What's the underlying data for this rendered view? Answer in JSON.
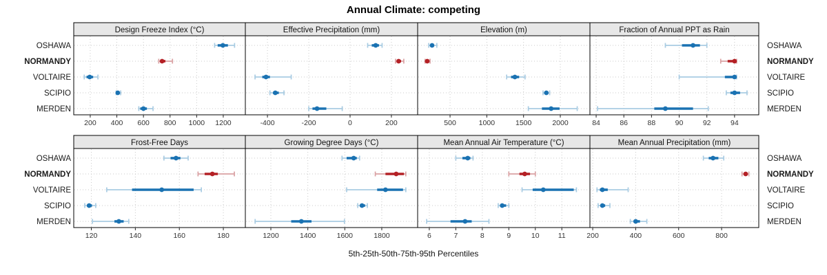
{
  "title": "Annual Climate: competing",
  "xlabel": "5th-25th-50th-75th-95th Percentiles",
  "categories": [
    "OSHAWA",
    "NORMANDY",
    "VOLTAIRE",
    "SCIPIO",
    "MERDEN"
  ],
  "highlight_category": "NORMANDY",
  "colors": {
    "point_dark_blue": "#1a72b2",
    "range_light_blue": "#a8cbe2",
    "point_dark_red": "#b42025",
    "range_light_red": "#d9a0a2",
    "strip_background": "#e7e7e7",
    "panel_border": "#000000",
    "gridline": "#c9c9c9",
    "tick_text": "#333333",
    "category_text": "#1a1a1a"
  },
  "chart_data": {
    "type": "percentile-dotplot-trellis",
    "percentiles": [
      5,
      25,
      50,
      75,
      95
    ],
    "legend_position": "none",
    "grid": "dotted",
    "rows_of_panels": 2,
    "cols_of_panels": 4,
    "panels": [
      {
        "title": "Design Freeze Index (°C)",
        "ticks": [
          200,
          400,
          600,
          800,
          1000,
          1200
        ],
        "xlim": [
          76,
          1366
        ],
        "series": [
          [
            1135,
            1158,
            1197,
            1235,
            1285
          ],
          [
            715,
            728,
            740,
            765,
            818
          ],
          [
            155,
            172,
            196,
            222,
            258
          ],
          [
            395,
            400,
            407,
            418,
            429
          ],
          [
            565,
            576,
            600,
            626,
            672
          ]
        ]
      },
      {
        "title": "Effective Precipitation (mm)",
        "ticks": [
          -400,
          -200,
          0,
          200
        ],
        "xlim": [
          -507,
          327
        ],
        "series": [
          [
            85,
            105,
            124,
            140,
            155
          ],
          [
            220,
            228,
            235,
            247,
            260
          ],
          [
            -460,
            -425,
            -407,
            -388,
            -285
          ],
          [
            -388,
            -373,
            -362,
            -345,
            -320
          ],
          [
            -200,
            -182,
            -160,
            -115,
            -38
          ]
        ]
      },
      {
        "title": "Elevation (m)",
        "ticks": [
          500,
          1000,
          1500,
          2000
        ],
        "xlim": [
          59,
          2403
        ],
        "series": [
          [
            210,
            235,
            255,
            280,
            320
          ],
          [
            160,
            178,
            190,
            205,
            228
          ],
          [
            1270,
            1330,
            1382,
            1440,
            1520
          ],
          [
            1765,
            1790,
            1810,
            1835,
            1855
          ],
          [
            1565,
            1750,
            1875,
            1990,
            2230
          ]
        ]
      },
      {
        "title": "Fraction of Annual PPT as Rain",
        "ticks": [
          84,
          86,
          88,
          90,
          92,
          94
        ],
        "xlim": [
          83.55,
          95.75
        ],
        "series": [
          [
            89.0,
            90.2,
            91.0,
            91.5,
            92.0
          ],
          [
            93.0,
            93.5,
            94.0,
            94.05,
            94.15
          ],
          [
            90.0,
            93.3,
            94.0,
            94.05,
            94.15
          ],
          [
            93.4,
            93.7,
            94.0,
            94.4,
            94.9
          ],
          [
            84.1,
            88.2,
            89.0,
            91.0,
            92.1
          ]
        ]
      },
      {
        "title": "Frost-Free Days",
        "ticks": [
          120,
          140,
          160,
          180
        ],
        "xlim": [
          112,
          190
        ],
        "series": [
          [
            153,
            156,
            158.5,
            160.5,
            164
          ],
          [
            168.5,
            171.5,
            175,
            177.5,
            185
          ],
          [
            127,
            138.5,
            152,
            166.5,
            170
          ],
          [
            117,
            118,
            119,
            120.3,
            122
          ],
          [
            120.5,
            130.5,
            132.5,
            134.7,
            137
          ]
        ]
      },
      {
        "title": "Growing Degree Days (°C)",
        "ticks": [
          1200,
          1400,
          1600,
          1800
        ],
        "xlim": [
          1062,
          1994
        ],
        "series": [
          [
            1585,
            1610,
            1648,
            1665,
            1680
          ],
          [
            1765,
            1820,
            1878,
            1920,
            1930
          ],
          [
            1610,
            1775,
            1820,
            1915,
            1930
          ],
          [
            1670,
            1682,
            1693,
            1710,
            1722
          ],
          [
            1115,
            1310,
            1365,
            1420,
            1598
          ]
        ]
      },
      {
        "title": "Mean Annual Air Temperature (°C)",
        "ticks": [
          6,
          7,
          8,
          9,
          10,
          11
        ],
        "xlim": [
          5.56,
          12.06
        ],
        "series": [
          [
            7.0,
            7.25,
            7.45,
            7.55,
            7.65
          ],
          [
            9.0,
            9.4,
            9.6,
            9.8,
            10.0
          ],
          [
            9.5,
            9.9,
            10.3,
            11.45,
            11.55
          ],
          [
            8.6,
            8.67,
            8.75,
            8.9,
            9.0
          ],
          [
            5.9,
            6.8,
            7.35,
            7.6,
            8.25
          ]
        ]
      },
      {
        "title": "Mean Annual Precipitation (mm)",
        "ticks": [
          200,
          400,
          600,
          800
        ],
        "xlim": [
          187,
          973
        ],
        "series": [
          [
            715,
            740,
            760,
            785,
            810
          ],
          [
            895,
            905,
            912,
            920,
            927
          ],
          [
            220,
            233,
            245,
            270,
            365
          ],
          [
            225,
            237,
            245,
            258,
            280
          ],
          [
            375,
            390,
            400,
            420,
            452
          ]
        ]
      }
    ]
  }
}
